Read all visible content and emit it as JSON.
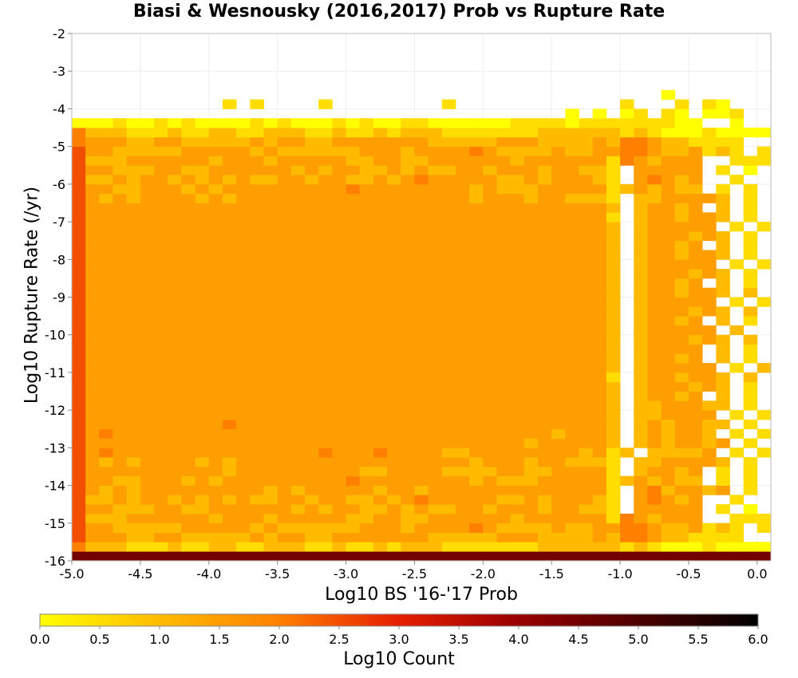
{
  "chart_data": {
    "type": "heatmap",
    "title": "Biasi & Wesnousky (2016,2017) Prob vs Rupture Rate",
    "xlabel": "Log10 BS '16-'17 Prob",
    "ylabel": "Log10 Rupture Rate (/yr)",
    "xlim": [
      -5.0,
      0.1
    ],
    "ylim": [
      -16,
      -2
    ],
    "xticks": [
      "-5.0",
      "-4.5",
      "-4.0",
      "-3.5",
      "-3.0",
      "-2.5",
      "-2.0",
      "-1.5",
      "-1.0",
      "-0.5",
      "0.0"
    ],
    "yticks": [
      "-2",
      "-3",
      "-4",
      "-5",
      "-6",
      "-7",
      "-8",
      "-9",
      "-10",
      "-11",
      "-12",
      "-13",
      "-14",
      "-15",
      "-16"
    ],
    "grid": true,
    "bin_width": 0.1,
    "bin_height": 0.25,
    "rows_bottom_to_top": [
      "0000000000000000000000000000000000000000000000000000",
      "5777888788778877788788787778888888777777878999899999",
      "4666776677777676677666666677777666777767556778888...",
      "4667777766666767777776667666656777767766556776878.8.",
      "4777666666766676666677667766666676666668567666..8888",
      "4667776677666666767667767677667666766778.66666.8.9.",
      "4776766767676776676677676566666776766678.65676..8.",
      "4676766666666676766666766766666666666668.6576676.8.8",
      "4667766676766666666656666666676777666668767677.8.8.",
      "4666666666676666666667766667777667766668.76676.8.8.",
      "4676766667676666666666666666676667667778.7766667.8.",
      "46566666666666666656665666677666666667687.77776.8.8.",
      "4666666666666666666666666666666667666667.7676676.8..",
      "4656666666666666666666666666666666676667.767667.8.8.",
      "4666666666656666666666666666666666666667.7676677.8.8",
      "4666666666666666666666666666666666666667.776666.8.8.",
      "4666666666666666666666666666666666666667.7766677.8..",
      "4666666666666666666666666666666666666667.76676.7.8.8",
      "4666666666666666666666666666666666666667.7666767.8.",
      "4666666666666666666666666666666666666668.7667667.7.8",
      "4666666666666666666666666666666666666667.766666.8.7.",
      "4666666666666666666666666666666666666667.76676.7.8.",
      "4666666666666666666666666666666666666667.76666.7.8.",
      "4666666666666666666666666666666666666667.7666767.7.7",
      "4666666666666666666666666666666666666667.766666.7..",
      "4666666666666666666666666666666666666667.76676.7.8.",
      "4666666666666666666666666666666666666667.7666767.7.7",
      "4666666666666666666666666666666666666667.766666.8.8.",
      "4666666666666666666666666666666666666667.7667667.7..",
      "4666666666666666666666666666666666666667.76676.7.8.8",
      "4666666666666666666666666666666666666667.7666767.8.",
      "4666666666666666666666666666666666666667.766666.8.8.",
      "4666666666666666666666666666666666666667.7667667.8..",
      "4666666666666666666666666666666666666667.76676.7.8.",
      "4666666666666666666666666666666666666667.7666767.8.8",
      "4666666666666666666666666666666666666667.766666.8.8.",
      "4666666666666666666666666666666666666668.7667667.8..",
      "4666666666666666666666666666666666666667.76676.7.8.",
      "4676766667676666666666666666676667667778.7766667.8.",
      "4667766676766666666656666666676777666668767677.8.8.",
      "4776766767676776676677676566666776766678.65676..8.",
      "4667776677666666767667767677667666766778.66666.8.9.",
      "4777666666766676666677667766666676666668567666..8888",
      "4667777766666767777776667666656777767766556776878.8.",
      "5666776677777676677666666677777666777767556778888...",
      "5777888788778877788788787778888888777777878999899999",
      "9998998989999898999898998899999988889888888899..9..8",
      "....................................9.9.98.89.998..9",
      "...........8.8....8........8............8...8.89...9",
      "...........................................9.......9",
      "......................................................",
      "......................................................",
      "......................................................",
      "......................................................",
      "......................................................",
      "......................................................"
    ],
    "shade_scale_note": "digit d in a row => log10 count = (9 - d) * 0.5; '.' = empty bin",
    "colorbar": {
      "label": "Log10 Count",
      "min": 0.0,
      "max": 6.0,
      "ticks": [
        "0.0",
        "0.5",
        "1.0",
        "1.5",
        "2.0",
        "2.5",
        "3.0",
        "3.5",
        "4.0",
        "4.5",
        "5.0",
        "5.5",
        "6.0"
      ],
      "colors": [
        "#ffff00",
        "#ffbb00",
        "#ff8000",
        "#e61e00",
        "#990000",
        "#4d0000",
        "#000000"
      ]
    }
  }
}
